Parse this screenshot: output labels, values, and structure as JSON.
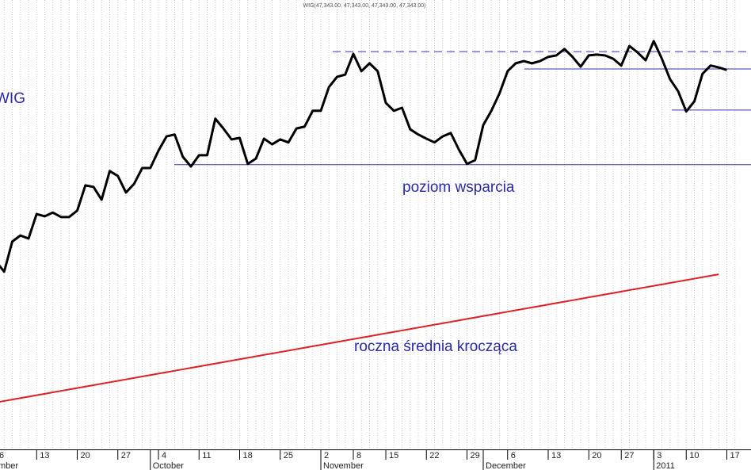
{
  "chart_data": {
    "type": "line",
    "title": "WIG(47,343.00, 47,343.00, 47,343.00, 47,343.00)",
    "categories": [
      "6",
      null,
      null,
      null,
      null,
      "13",
      null,
      null,
      null,
      null,
      "20",
      null,
      null,
      null,
      null,
      "27",
      null,
      null,
      null,
      null,
      "4",
      null,
      null,
      null,
      null,
      "11",
      null,
      null,
      null,
      null,
      "18",
      null,
      null,
      null,
      null,
      "25",
      null,
      null,
      null,
      null,
      "2",
      null,
      null,
      null,
      "8",
      null,
      null,
      null,
      "15",
      null,
      null,
      null,
      null,
      "22",
      null,
      null,
      null,
      null,
      "29",
      null,
      null,
      null,
      null,
      "6",
      null,
      null,
      null,
      null,
      "13",
      null,
      null,
      null,
      null,
      "20",
      null,
      null,
      null,
      "27",
      null,
      null,
      null,
      "3",
      null,
      null,
      null,
      "10",
      null,
      null,
      null,
      null,
      "17",
      null
    ],
    "months": [
      "mber",
      null,
      null,
      null,
      null,
      null,
      null,
      null,
      null,
      null,
      null,
      null,
      null,
      null,
      null,
      null,
      null,
      null,
      null,
      "October",
      null,
      null,
      null,
      null,
      null,
      null,
      null,
      null,
      null,
      null,
      null,
      null,
      null,
      null,
      null,
      null,
      null,
      null,
      null,
      null,
      "November",
      null,
      null,
      null,
      null,
      null,
      null,
      null,
      null,
      null,
      null,
      null,
      null,
      null,
      null,
      null,
      null,
      null,
      null,
      null,
      "December",
      null,
      null,
      null,
      null,
      null,
      null,
      null,
      null,
      null,
      null,
      null,
      null,
      null,
      null,
      null,
      null,
      null,
      null,
      null,
      null,
      "2011",
      null,
      null,
      null,
      null,
      null,
      null,
      null,
      null,
      null,
      null
    ],
    "series": [
      {
        "name": "WIG",
        "color": "#000000",
        "values": [
          42260,
          41990,
          42790,
          42950,
          42870,
          43520,
          43460,
          43560,
          43440,
          43440,
          43610,
          44280,
          44240,
          43900,
          44660,
          44530,
          44090,
          44320,
          44740,
          44740,
          45200,
          45580,
          45630,
          45040,
          44780,
          45080,
          45080,
          46050,
          45790,
          45500,
          45540,
          44850,
          44990,
          45520,
          45370,
          45500,
          45420,
          45790,
          45840,
          46260,
          46260,
          46890,
          47160,
          47220,
          47770,
          47310,
          47520,
          47310,
          46470,
          46260,
          46340,
          45770,
          45630,
          45520,
          45420,
          45580,
          45670,
          45230,
          44850,
          44950,
          45880,
          46260,
          46720,
          47310,
          47520,
          47580,
          47520,
          47580,
          47690,
          47730,
          47900,
          47690,
          47430,
          47730,
          47750,
          47730,
          47640,
          47460,
          47980,
          47810,
          47600,
          48110,
          47640,
          47100,
          46780,
          46240,
          46510,
          47240,
          47460,
          47410,
          47343,
          null
        ]
      },
      {
        "name": "roczna średnia krocząca",
        "color": "#e02020",
        "values": [
          38520,
          38558,
          38596,
          38635,
          38673,
          38711,
          38749,
          38787,
          38826,
          38864,
          38902,
          38940,
          38978,
          39017,
          39055,
          39093,
          39131,
          39169,
          39208,
          39246,
          39284,
          39322,
          39360,
          39399,
          39437,
          39475,
          39513,
          39551,
          39590,
          39628,
          39666,
          39704,
          39742,
          39781,
          39819,
          39857,
          39895,
          39933,
          39972,
          40010,
          40048,
          40086,
          40124,
          40163,
          40201,
          40239,
          40277,
          40315,
          40354,
          40392,
          40430,
          40468,
          40506,
          40545,
          40583,
          40621,
          40659,
          40697,
          40736,
          40774,
          40812,
          40850,
          40888,
          40927,
          40965,
          41003,
          41041,
          41079,
          41118,
          41156,
          41194,
          41232,
          41270,
          41309,
          41347,
          41385,
          41423,
          41461,
          41500,
          41538,
          41576,
          41614,
          41652,
          41691,
          41729,
          41767,
          41805,
          41843,
          41882,
          41920,
          null,
          null
        ]
      }
    ],
    "reference_lines": [
      {
        "label": "poziom wsparcia",
        "value": 44830,
        "style": "solid",
        "color": "#3333aa"
      },
      {
        "value": 47830,
        "style": "dashed",
        "color": "#3333aa"
      },
      {
        "value": 47370,
        "style": "solid",
        "color": "#3333aa"
      },
      {
        "value": 46280,
        "style": "solid",
        "color": "#3333aa"
      }
    ],
    "ylim": [
      37000,
      49200
    ],
    "grid": true
  }
}
